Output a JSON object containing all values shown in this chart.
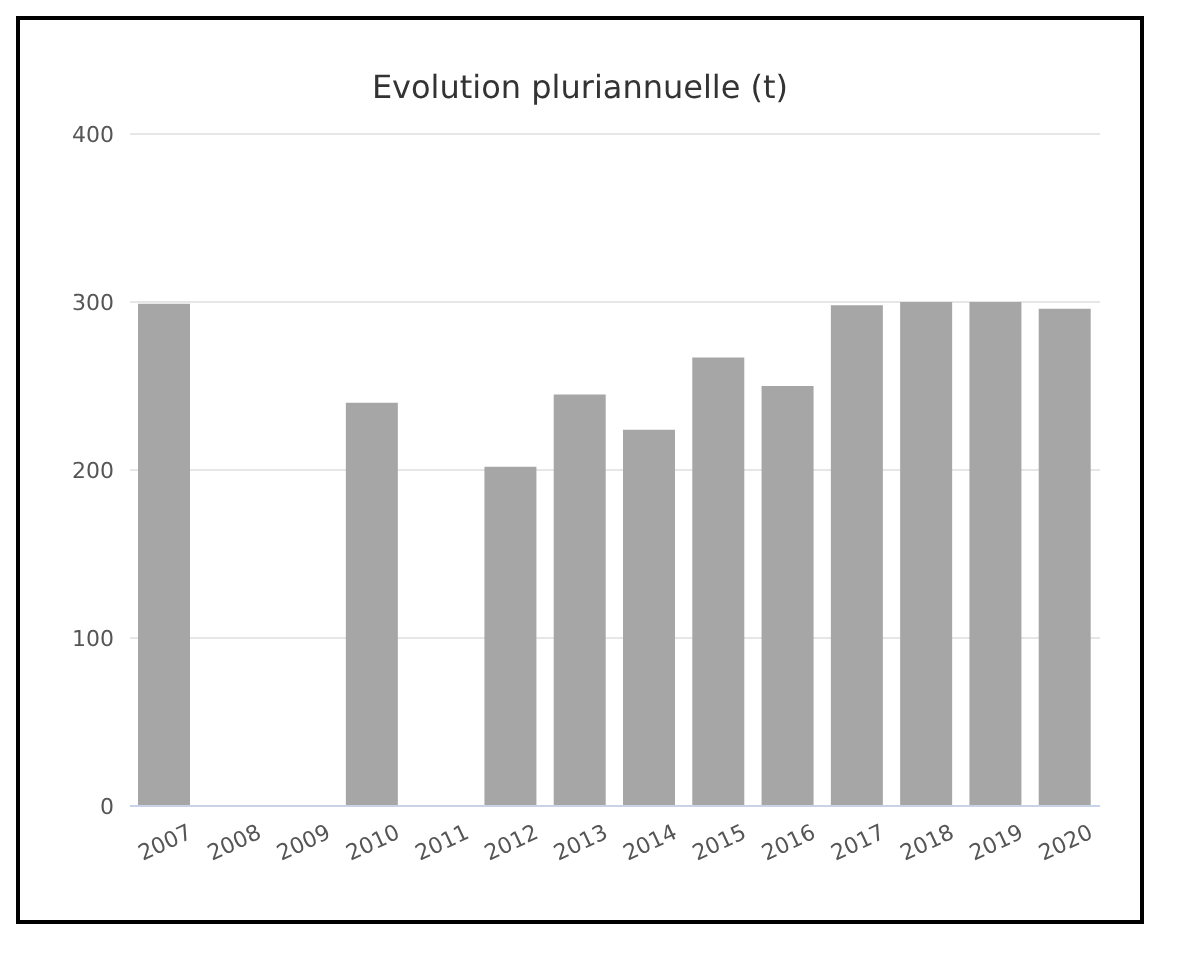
{
  "chart_data": {
    "type": "bar",
    "title": "Evolution pluriannuelle (t)",
    "categories": [
      "2007",
      "2008",
      "2009",
      "2010",
      "2011",
      "2012",
      "2013",
      "2014",
      "2015",
      "2016",
      "2017",
      "2018",
      "2019",
      "2020"
    ],
    "values": [
      299,
      null,
      null,
      240,
      null,
      202,
      245,
      224,
      267,
      250,
      298,
      300,
      300,
      296
    ],
    "color": "#a6a6a6",
    "ylim": [
      0,
      400
    ],
    "yticks": [
      0,
      100,
      200,
      300,
      400
    ],
    "grid": "y",
    "legend": false
  }
}
